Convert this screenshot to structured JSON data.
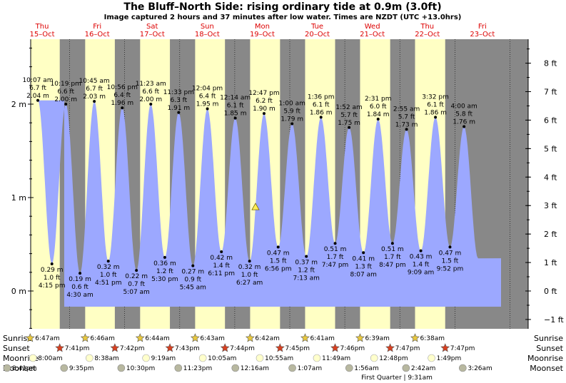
{
  "header": {
    "title": "The Bluff–North Side: rising  ordinary tide at 0.9m (3.0ft)",
    "subtitle": "Image captured 2 hours and 37 minutes after low water. Times are NZDT (UTC +13.0hrs)"
  },
  "colors": {
    "day": "#ffffc4",
    "night": "#888888",
    "tide": "#9ca8ff",
    "day_label": "#dd0000",
    "sunrise": "#e8c840",
    "sunset": "#d84020",
    "moonrise": "#ffffcc",
    "moonset": "#b8b8a0"
  },
  "chart_data": {
    "type": "area",
    "days": [
      {
        "weekday": "Thu",
        "date": "15–Oct"
      },
      {
        "weekday": "Fri",
        "date": "16–Oct"
      },
      {
        "weekday": "Sat",
        "date": "17–Oct"
      },
      {
        "weekday": "Sun",
        "date": "18–Oct"
      },
      {
        "weekday": "Mon",
        "date": "19–Oct"
      },
      {
        "weekday": "Tue",
        "date": "20–Oct"
      },
      {
        "weekday": "Wed",
        "date": "21–Oct"
      },
      {
        "weekday": "Thu",
        "date": "22–Oct"
      },
      {
        "weekday": "Fri",
        "date": "23–Oct"
      }
    ],
    "y_left_ticks": [
      {
        "value": 0,
        "label": "0 m"
      },
      {
        "value": 1,
        "label": "1 m"
      },
      {
        "value": 2,
        "label": "2 m"
      }
    ],
    "y_right_ticks": [
      {
        "value": -1,
        "label": "−1 ft"
      },
      {
        "value": 0,
        "label": "0 ft"
      },
      {
        "value": 1,
        "label": "1 ft"
      },
      {
        "value": 2,
        "label": "2 ft"
      },
      {
        "value": 3,
        "label": "3 ft"
      },
      {
        "value": 4,
        "label": "4 ft"
      },
      {
        "value": 5,
        "label": "5 ft"
      },
      {
        "value": 6,
        "label": "6 ft"
      },
      {
        "value": 7,
        "label": "7 ft"
      },
      {
        "value": 8,
        "label": "8 ft"
      }
    ],
    "ylim_m": [
      -0.42,
      2.66
    ],
    "tides": [
      {
        "kind": "high",
        "day": 0,
        "time": "10:07 am",
        "time_h": 10.12,
        "m": 2.04,
        "ft": "6.7 ft",
        "m_label": "2.04 m"
      },
      {
        "kind": "low",
        "day": 0,
        "time": "4:15 pm",
        "time_h": 16.25,
        "m": 0.29,
        "ft": "1.0 ft",
        "m_label": "0.29 m"
      },
      {
        "kind": "high",
        "day": 0,
        "time": "10:19 pm",
        "time_h": 22.32,
        "m": 2.0,
        "ft": "6.6 ft",
        "m_label": "2.00 m"
      },
      {
        "kind": "low",
        "day": 1,
        "time": "4:30 am",
        "time_h": 4.5,
        "m": 0.19,
        "ft": "0.6 ft",
        "m_label": "0.19 m"
      },
      {
        "kind": "high",
        "day": 1,
        "time": "10:45 am",
        "time_h": 10.75,
        "m": 2.03,
        "ft": "6.7 ft",
        "m_label": "2.03 m"
      },
      {
        "kind": "low",
        "day": 1,
        "time": "4:51 pm",
        "time_h": 16.85,
        "m": 0.32,
        "ft": "1.0 ft",
        "m_label": "0.32 m"
      },
      {
        "kind": "high",
        "day": 1,
        "time": "10:56 pm",
        "time_h": 22.93,
        "m": 1.96,
        "ft": "6.4 ft",
        "m_label": "1.96 m"
      },
      {
        "kind": "low",
        "day": 2,
        "time": "5:07 am",
        "time_h": 5.12,
        "m": 0.22,
        "ft": "0.7 ft",
        "m_label": "0.22 m"
      },
      {
        "kind": "high",
        "day": 2,
        "time": "11:23 am",
        "time_h": 11.38,
        "m": 2.0,
        "ft": "6.6 ft",
        "m_label": "2.00 m"
      },
      {
        "kind": "low",
        "day": 2,
        "time": "5:30 pm",
        "time_h": 17.5,
        "m": 0.36,
        "ft": "1.2 ft",
        "m_label": "0.36 m"
      },
      {
        "kind": "high",
        "day": 2,
        "time": "11:33 pm",
        "time_h": 23.55,
        "m": 1.91,
        "ft": "6.3 ft",
        "m_label": "1.91 m"
      },
      {
        "kind": "low",
        "day": 3,
        "time": "5:45 am",
        "time_h": 5.75,
        "m": 0.27,
        "ft": "0.9 ft",
        "m_label": "0.27 m"
      },
      {
        "kind": "high",
        "day": 3,
        "time": "12:04 pm",
        "time_h": 12.07,
        "m": 1.95,
        "ft": "6.4 ft",
        "m_label": "1.95 m"
      },
      {
        "kind": "low",
        "day": 3,
        "time": "6:11 pm",
        "time_h": 18.18,
        "m": 0.42,
        "ft": "1.4 ft",
        "m_label": "0.42 m"
      },
      {
        "kind": "high",
        "day": 4,
        "time": "12:14 am",
        "time_h": 0.23,
        "m": 1.85,
        "ft": "6.1 ft",
        "m_label": "1.85 m"
      },
      {
        "kind": "low",
        "day": 4,
        "time": "6:27 am",
        "time_h": 6.45,
        "m": 0.32,
        "ft": "1.0 ft",
        "m_label": "0.32 m"
      },
      {
        "kind": "high",
        "day": 4,
        "time": "12:47 pm",
        "time_h": 12.78,
        "m": 1.9,
        "ft": "6.2 ft",
        "m_label": "1.90 m"
      },
      {
        "kind": "low",
        "day": 4,
        "time": "6:56 pm",
        "time_h": 18.93,
        "m": 0.47,
        "ft": "1.5 ft",
        "m_label": "0.47 m"
      },
      {
        "kind": "high",
        "day": 5,
        "time": "1:00 am",
        "time_h": 1.0,
        "m": 1.79,
        "ft": "5.9 ft",
        "m_label": "1.79 m"
      },
      {
        "kind": "low",
        "day": 5,
        "time": "7:13 am",
        "time_h": 7.22,
        "m": 0.37,
        "ft": "1.2 ft",
        "m_label": "0.37 m"
      },
      {
        "kind": "high",
        "day": 5,
        "time": "1:36 pm",
        "time_h": 13.6,
        "m": 1.86,
        "ft": "6.1 ft",
        "m_label": "1.86 m"
      },
      {
        "kind": "low",
        "day": 5,
        "time": "7:47 pm",
        "time_h": 19.78,
        "m": 0.51,
        "ft": "1.7 ft",
        "m_label": "0.51 m"
      },
      {
        "kind": "high",
        "day": 6,
        "time": "1:52 am",
        "time_h": 1.87,
        "m": 1.75,
        "ft": "5.7 ft",
        "m_label": "1.75 m"
      },
      {
        "kind": "low",
        "day": 6,
        "time": "8:07 am",
        "time_h": 8.12,
        "m": 0.41,
        "ft": "1.3 ft",
        "m_label": "0.41 m"
      },
      {
        "kind": "high",
        "day": 6,
        "time": "2:31 pm",
        "time_h": 14.52,
        "m": 1.84,
        "ft": "6.0 ft",
        "m_label": "1.84 m"
      },
      {
        "kind": "low",
        "day": 6,
        "time": "8:47 pm",
        "time_h": 20.78,
        "m": 0.51,
        "ft": "1.7 ft",
        "m_label": "0.51 m"
      },
      {
        "kind": "high",
        "day": 7,
        "time": "2:55 am",
        "time_h": 2.92,
        "m": 1.73,
        "ft": "5.7 ft",
        "m_label": "1.73 m"
      },
      {
        "kind": "low",
        "day": 7,
        "time": "9:09 am",
        "time_h": 9.15,
        "m": 0.43,
        "ft": "1.4 ft",
        "m_label": "0.43 m"
      },
      {
        "kind": "high",
        "day": 7,
        "time": "3:32 pm",
        "time_h": 15.53,
        "m": 1.86,
        "ft": "6.1 ft",
        "m_label": "1.86 m"
      },
      {
        "kind": "low",
        "day": 7,
        "time": "9:52 pm",
        "time_h": 21.87,
        "m": 0.47,
        "ft": "1.5 ft",
        "m_label": "0.47 m"
      },
      {
        "kind": "high",
        "day": 8,
        "time": "4:00 am",
        "time_h": 4.0,
        "m": 1.76,
        "ft": "5.8 ft",
        "m_label": "1.76 m"
      }
    ],
    "current_marker": {
      "m": 0.9,
      "day": 4,
      "time_h": 9.05
    }
  },
  "astro": {
    "row_labels": {
      "sunrise": "Sunrise",
      "sunset": "Sunset",
      "moonrise": "Moonrise",
      "moonset": "Moonset"
    },
    "sunrise": [
      {
        "day": 0,
        "time_h": 6.78,
        "label": "6:47am"
      },
      {
        "day": 1,
        "time_h": 6.77,
        "label": "6:46am"
      },
      {
        "day": 2,
        "time_h": 6.73,
        "label": "6:44am"
      },
      {
        "day": 3,
        "time_h": 6.72,
        "label": "6:43am"
      },
      {
        "day": 4,
        "time_h": 6.7,
        "label": "6:42am"
      },
      {
        "day": 5,
        "time_h": 6.68,
        "label": "6:41am"
      },
      {
        "day": 6,
        "time_h": 6.65,
        "label": "6:39am"
      },
      {
        "day": 7,
        "time_h": 6.63,
        "label": "6:38am"
      }
    ],
    "sunset": [
      {
        "day": 0,
        "time_h": 19.68,
        "label": "7:41pm"
      },
      {
        "day": 1,
        "time_h": 19.7,
        "label": "7:42pm"
      },
      {
        "day": 2,
        "time_h": 19.72,
        "label": "7:43pm"
      },
      {
        "day": 3,
        "time_h": 19.73,
        "label": "7:44pm"
      },
      {
        "day": 4,
        "time_h": 19.75,
        "label": "7:45pm"
      },
      {
        "day": 5,
        "time_h": 19.77,
        "label": "7:46pm"
      },
      {
        "day": 6,
        "time_h": 19.78,
        "label": "7:47pm"
      },
      {
        "day": 7,
        "time_h": 19.78,
        "label": "7:47pm"
      }
    ],
    "moonrise": [
      {
        "day": 0,
        "time_h": 8.0,
        "label": "8:00am"
      },
      {
        "day": 1,
        "time_h": 8.63,
        "label": "8:38am"
      },
      {
        "day": 2,
        "time_h": 9.32,
        "label": "9:19am"
      },
      {
        "day": 3,
        "time_h": 10.08,
        "label": "10:05am"
      },
      {
        "day": 4,
        "time_h": 10.92,
        "label": "10:55am"
      },
      {
        "day": 5,
        "time_h": 11.82,
        "label": "11:49am"
      },
      {
        "day": 6,
        "time_h": 12.8,
        "label": "12:48pm"
      },
      {
        "day": 7,
        "time_h": 13.82,
        "label": "1:49pm"
      }
    ],
    "moonset": [
      {
        "day": 0,
        "time_h": -3.32,
        "label": "8:41pm"
      },
      {
        "day": 0,
        "time_h": 21.58,
        "label": "9:35pm"
      },
      {
        "day": 1,
        "time_h": 22.5,
        "label": "10:30pm"
      },
      {
        "day": 2,
        "time_h": 23.38,
        "label": "11:23pm"
      },
      {
        "day": 4,
        "time_h": 0.27,
        "label": "12:16am"
      },
      {
        "day": 5,
        "time_h": 1.12,
        "label": "1:07am"
      },
      {
        "day": 6,
        "time_h": 1.93,
        "label": "1:56am"
      },
      {
        "day": 7,
        "time_h": 2.7,
        "label": "2:42am"
      },
      {
        "day": 8,
        "time_h": 3.43,
        "label": "3:26am"
      }
    ],
    "moon_phase": "First Quarter | 9:31am"
  }
}
